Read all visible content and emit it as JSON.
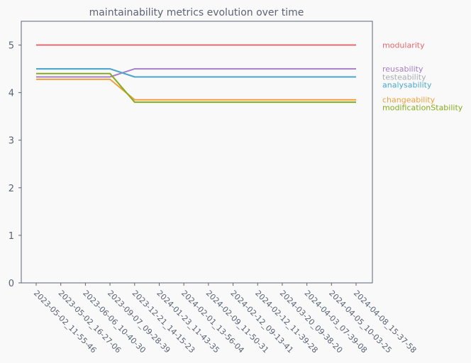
{
  "chart_data": {
    "type": "line",
    "title": "maintainability metrics evolution over time",
    "xlabel": "",
    "ylabel": "",
    "ylim": [
      0,
      5.5
    ],
    "yticks": [
      0,
      1,
      2,
      3,
      4,
      5
    ],
    "grid": false,
    "legend_position": "right",
    "x": [
      "2023-05-02_11-55-46",
      "2023-05-02_16-27-06",
      "2023-06-06_10-40-30",
      "2023-09-07_09-28-39",
      "2023-12-21_14-15-23",
      "2024-01-23_11-43-35",
      "2024-02-01_13-56-04",
      "2024-02-09_11-50-31",
      "2024-02-12_09-13-41",
      "2024-02-12_11-39-28",
      "2024-03-20_09-38-20",
      "2024-04-03_07-39-08",
      "2024-04-05_10-03-25",
      "2024-04-08_15-37-58"
    ],
    "series": [
      {
        "name": "modularity",
        "color": "#e8686e",
        "values": [
          5,
          5,
          5,
          5,
          5,
          5,
          5,
          5,
          5,
          5,
          5,
          5,
          5,
          5
        ]
      },
      {
        "name": "reusability",
        "color": "#a67fc7",
        "values": [
          4.33,
          4.33,
          4.33,
          4.33,
          4.5,
          4.5,
          4.5,
          4.5,
          4.5,
          4.5,
          4.5,
          4.5,
          4.5,
          4.5
        ]
      },
      {
        "name": "testeability",
        "color": "#a9adb3",
        "values": [
          4.5,
          4.5,
          4.5,
          4.5,
          4.33,
          4.33,
          4.33,
          4.33,
          4.33,
          4.33,
          4.33,
          4.33,
          4.33,
          4.33
        ]
      },
      {
        "name": "analysability",
        "color": "#4aa8cc",
        "values": [
          4.5,
          4.5,
          4.5,
          4.5,
          4.33,
          4.33,
          4.33,
          4.33,
          4.33,
          4.33,
          4.33,
          4.33,
          4.33,
          4.33
        ]
      },
      {
        "name": "changeability",
        "color": "#f0a03c",
        "values": [
          4.28,
          4.28,
          4.28,
          4.28,
          3.85,
          3.85,
          3.85,
          3.85,
          3.85,
          3.85,
          3.85,
          3.85,
          3.85,
          3.85
        ]
      },
      {
        "name": "modificationStability",
        "color": "#86ab1e",
        "values": [
          4.4,
          4.4,
          4.4,
          4.4,
          3.8,
          3.8,
          3.8,
          3.8,
          3.8,
          3.8,
          3.8,
          3.8,
          3.8,
          3.8
        ]
      }
    ],
    "axis_color": "#5b6375"
  }
}
